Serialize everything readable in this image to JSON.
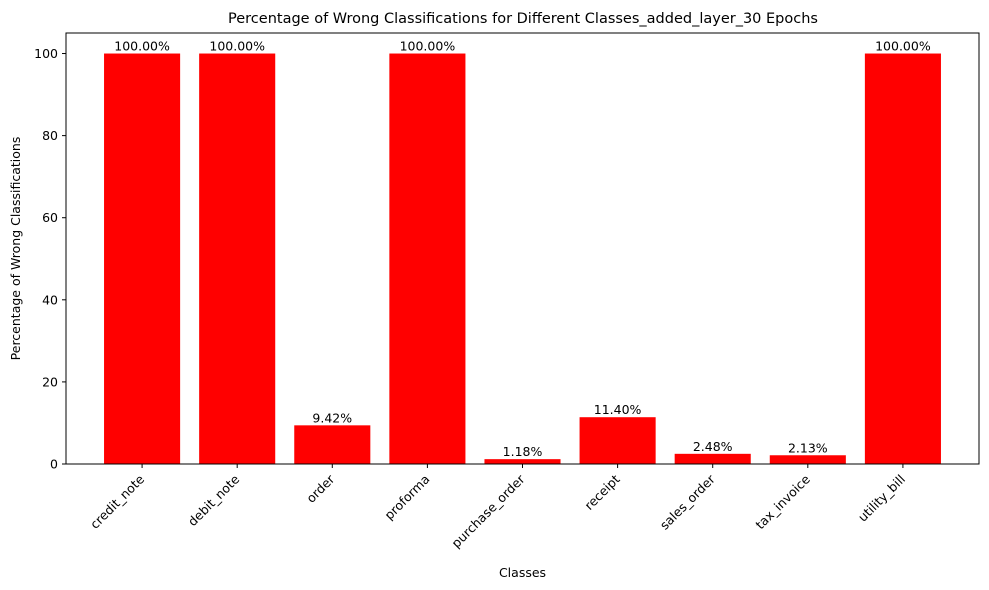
{
  "chart_data": {
    "type": "bar",
    "title": "Percentage of Wrong Classifications for Different Classes_added_layer_30 Epochs",
    "xlabel": "Classes",
    "ylabel": "Percentage of Wrong Classifications",
    "categories": [
      "credit_note",
      "debit_note",
      "order",
      "proforma",
      "purchase_order",
      "receipt",
      "sales_order",
      "tax_invoice",
      "utility_bill"
    ],
    "values": [
      100.0,
      100.0,
      9.42,
      100.0,
      1.18,
      11.4,
      2.48,
      2.13,
      100.0
    ],
    "data_labels": [
      "100.00%",
      "100.00%",
      "9.42%",
      "100.00%",
      "1.18%",
      "11.40%",
      "2.48%",
      "2.13%",
      "100.00%"
    ],
    "ylim": [
      0,
      105
    ],
    "yticks": [
      0,
      20,
      40,
      60,
      80,
      100
    ],
    "bar_color": "#ff0000",
    "grid": false,
    "legend": "none"
  }
}
